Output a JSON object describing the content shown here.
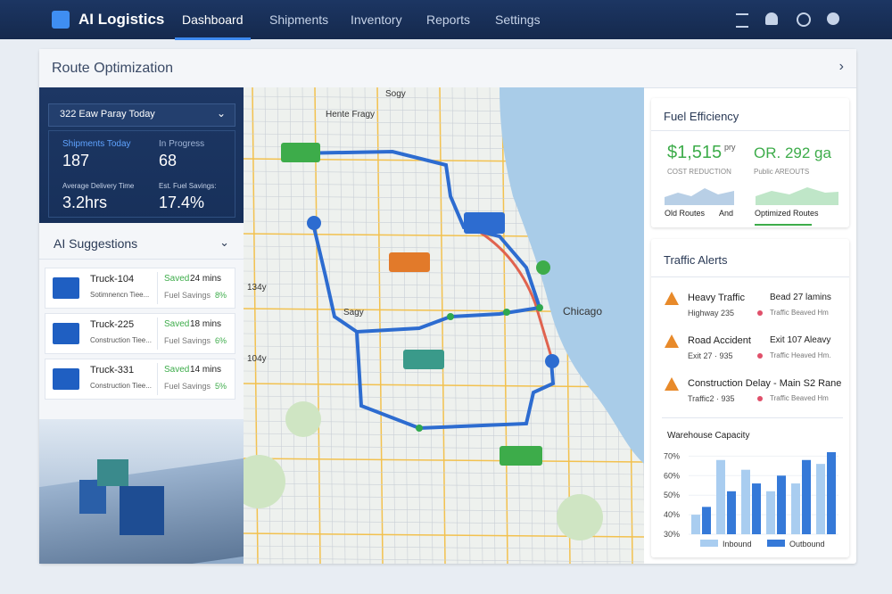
{
  "nav": {
    "brand": "AI Logistics",
    "items": [
      "Dashboard",
      "Shipments",
      "Inventory",
      "Reports",
      "Settings"
    ]
  },
  "panel": {
    "title": "Route Optimization"
  },
  "summary": {
    "header": "322 Eaw Paray Today",
    "stats": [
      {
        "label": "Shipments Today",
        "value": "187"
      },
      {
        "label": "In Progress",
        "value": "68"
      },
      {
        "label": "Average Delivery Time",
        "value": "3.2hrs"
      },
      {
        "label": "Est. Fuel Savings:",
        "value": "17.4%"
      }
    ]
  },
  "suggestions": {
    "title": "AI Suggestions",
    "items": [
      {
        "truck": "Truck-104",
        "detail": "Sotimnencn Tiee...",
        "saved_label": "Saved",
        "saved": "24 mins",
        "fuel_label": "Fuel Savings",
        "fuel": "8%"
      },
      {
        "truck": "Truck-225",
        "detail": "Construction Tiee...",
        "saved_label": "Saved",
        "saved": "18 mins",
        "fuel_label": "Fuel Savings",
        "fuel": "6%"
      },
      {
        "truck": "Truck-331",
        "detail": "Construction Tiee...",
        "saved_label": "Saved",
        "saved": "14 mins",
        "fuel_label": "Fuel Savings",
        "fuel": "5%"
      }
    ]
  },
  "map": {
    "labels": [
      "Sogy",
      "Hente Fragy",
      "Chicago",
      "134y",
      "Sagy",
      "104y"
    ]
  },
  "fuel": {
    "title": "Fuel Efficiency",
    "cost": "$1,515",
    "cost_unit": "pry",
    "cost_label": "COST REDUCTION",
    "gallons": "OR. 292 ga",
    "gallons_label": "Public AREOUTS",
    "old": "Old Routes",
    "and": "And",
    "optimized": "Optimized Routes"
  },
  "alerts": {
    "title": "Traffic Alerts",
    "items": [
      {
        "title": "Heavy Traffic",
        "detail": "Highway 235",
        "right_title": "Bead 27 lamins",
        "right_detail": "Traffic Beaved Hm"
      },
      {
        "title": "Road Accident",
        "detail": "Exit 27 · 935",
        "right_title": "Exit 107 Aleavy",
        "right_detail": "Traffic Heaved Hm."
      },
      {
        "title": "Construction Delay - Main S2 Rane",
        "detail": "Traffic2 · 935",
        "right_title": "",
        "right_detail": "Traffic Beaved Hm"
      }
    ]
  },
  "warehouse": {
    "type": "bar",
    "title": "Warehouse Capacity",
    "ylim": [
      30,
      72
    ],
    "yticks": [
      {
        "value": 70,
        "label": "70%"
      },
      {
        "value": 60,
        "label": "60%"
      },
      {
        "value": 50,
        "label": "50%"
      },
      {
        "value": 40,
        "label": "40%"
      },
      {
        "value": 30,
        "label": "30%"
      }
    ],
    "series": [
      {
        "name": "Inbound",
        "color": "#a9cdf0",
        "values": [
          40,
          68,
          63,
          52,
          56,
          66
        ]
      },
      {
        "name": "Outbound",
        "color": "#3579d8",
        "values": [
          44,
          52,
          56,
          60,
          68,
          72
        ]
      }
    ]
  }
}
